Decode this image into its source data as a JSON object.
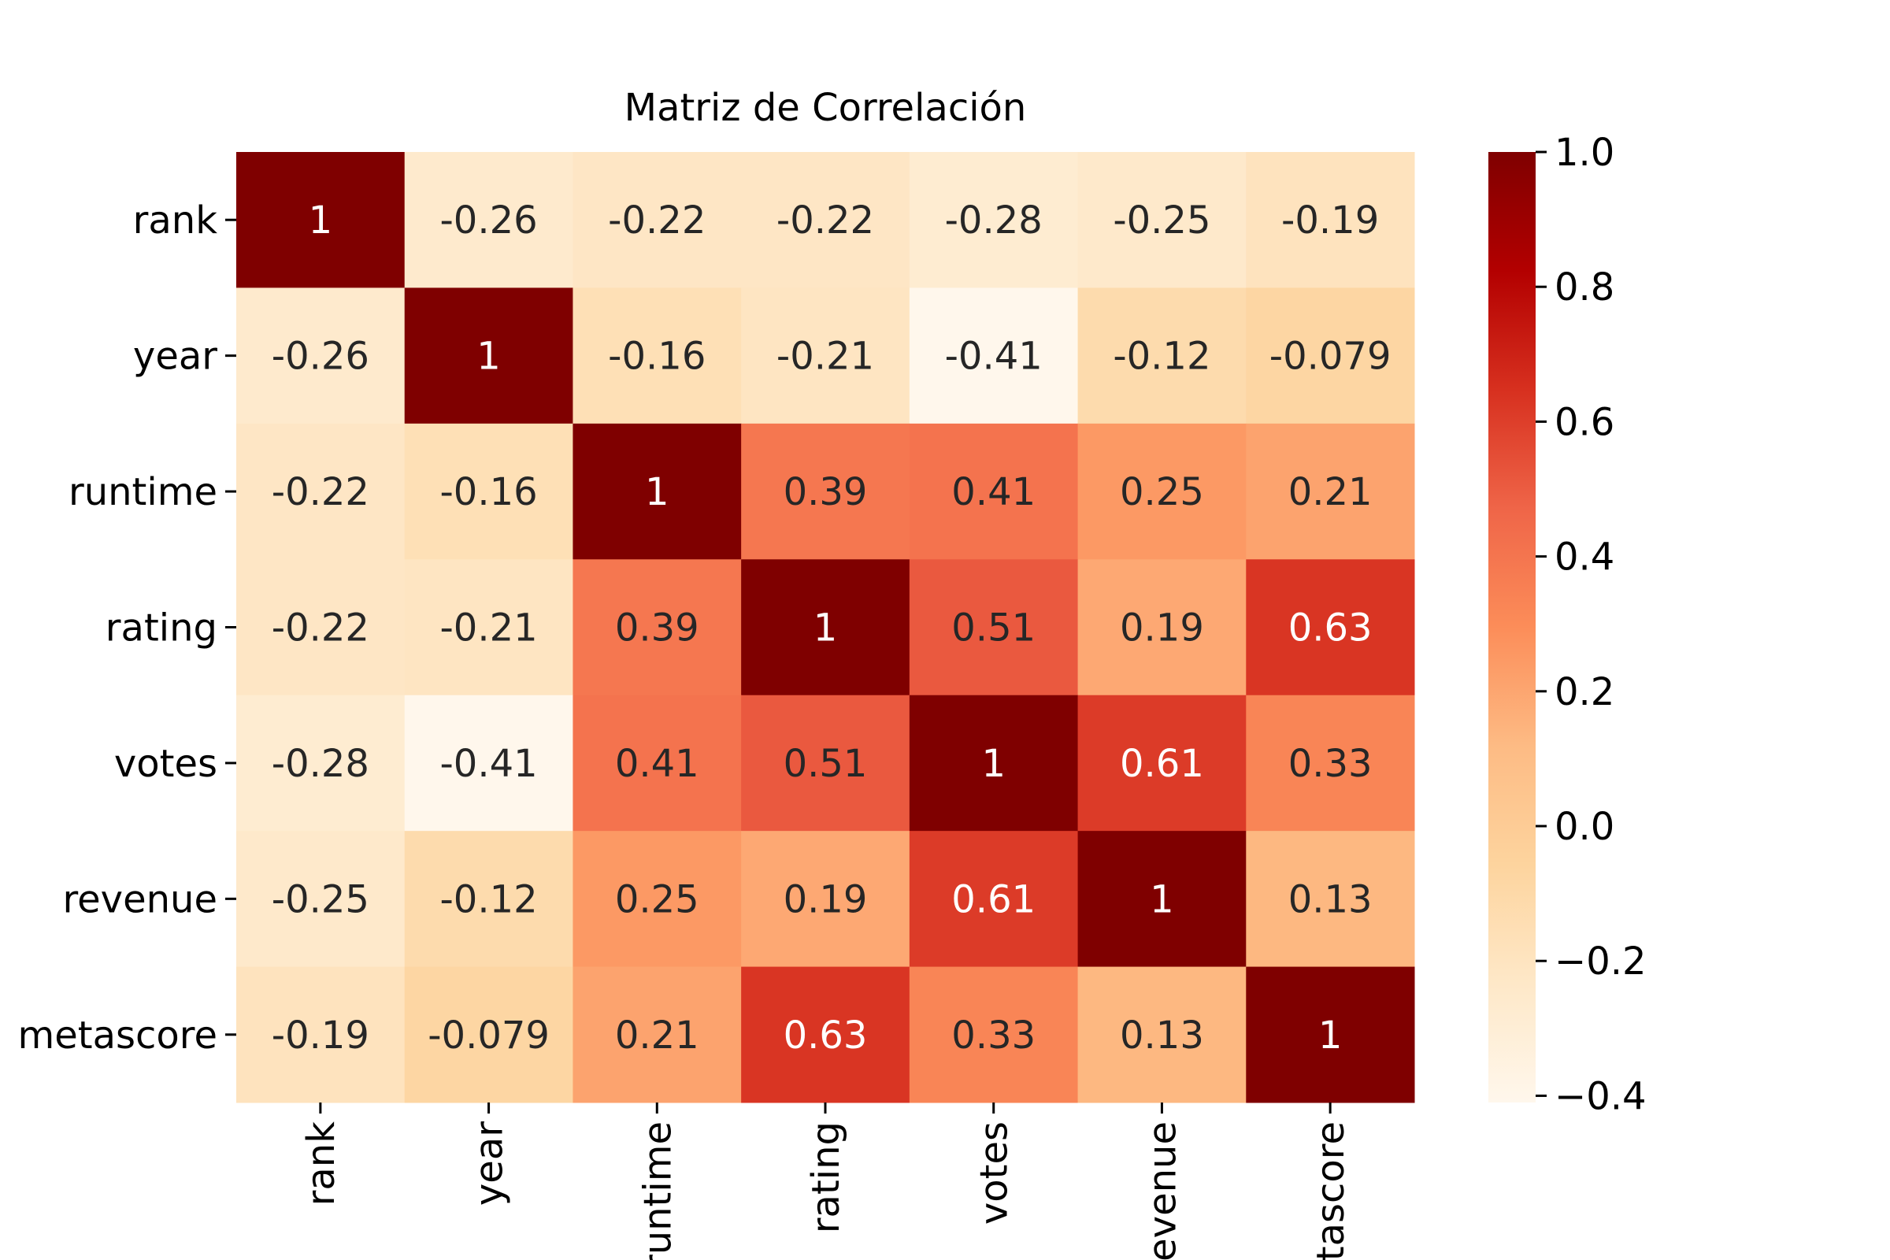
{
  "chart_data": {
    "type": "heatmap",
    "title": "Matriz de Correlación",
    "row_labels": [
      "rank",
      "year",
      "runtime",
      "rating",
      "votes",
      "revenue",
      "metascore"
    ],
    "col_labels": [
      "rank",
      "year",
      "runtime",
      "rating",
      "votes",
      "revenue",
      "metascore"
    ],
    "values": [
      [
        1,
        -0.26,
        -0.22,
        -0.22,
        -0.28,
        -0.25,
        -0.19
      ],
      [
        -0.26,
        1,
        -0.16,
        -0.21,
        -0.41,
        -0.12,
        -0.079
      ],
      [
        -0.22,
        -0.16,
        1,
        0.39,
        0.41,
        0.25,
        0.21
      ],
      [
        -0.22,
        -0.21,
        0.39,
        1,
        0.51,
        0.19,
        0.63
      ],
      [
        -0.28,
        -0.41,
        0.41,
        0.51,
        1,
        0.61,
        0.33
      ],
      [
        -0.25,
        -0.12,
        0.25,
        0.19,
        0.61,
        1,
        0.13
      ],
      [
        -0.19,
        -0.079,
        0.21,
        0.63,
        0.33,
        0.13,
        1
      ]
    ],
    "annotations": [
      [
        "1",
        "-0.26",
        "-0.22",
        "-0.22",
        "-0.28",
        "-0.25",
        "-0.19"
      ],
      [
        "-0.26",
        "1",
        "-0.16",
        "-0.21",
        "-0.41",
        "-0.12",
        "-0.079"
      ],
      [
        "-0.22",
        "-0.16",
        "1",
        "0.39",
        "0.41",
        "0.25",
        "0.21"
      ],
      [
        "-0.22",
        "-0.21",
        "0.39",
        "1",
        "0.51",
        "0.19",
        "0.63"
      ],
      [
        "-0.28",
        "-0.41",
        "0.41",
        "0.51",
        "1",
        "0.61",
        "0.33"
      ],
      [
        "-0.25",
        "-0.12",
        "0.25",
        "0.19",
        "0.61",
        "1",
        "0.13"
      ],
      [
        "-0.19",
        "-0.079",
        "0.21",
        "0.63",
        "0.33",
        "0.13",
        "1"
      ]
    ],
    "colormap": "OrRd",
    "colormap_stops": [
      "#fff7ec",
      "#fee8c8",
      "#fdd49e",
      "#fdbb84",
      "#fc8d59",
      "#ef6548",
      "#d7301f",
      "#b30000",
      "#7f0000"
    ],
    "vmin": -0.41,
    "vmax": 1.0,
    "colorbar": {
      "ticks": [
        1.0,
        0.8,
        0.6,
        0.4,
        0.2,
        0.0,
        -0.2,
        -0.4
      ],
      "tick_labels": [
        "1.0",
        "0.8",
        "0.6",
        "0.4",
        "0.2",
        "0.0",
        "−0.2",
        "−0.4"
      ],
      "placement": "right"
    },
    "grid": false
  }
}
